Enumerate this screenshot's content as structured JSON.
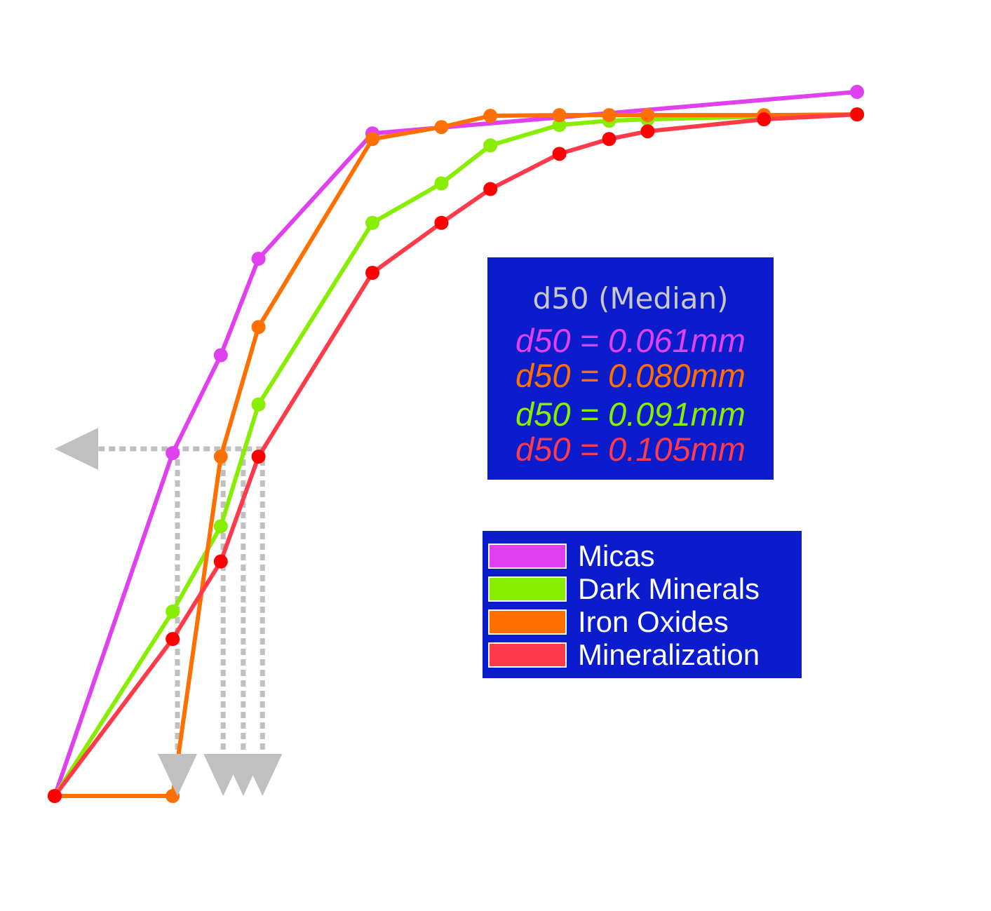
{
  "chart_data": {
    "type": "line",
    "title": "",
    "xlabel": "",
    "ylabel": "",
    "xlim": [
      0,
      100
    ],
    "ylim": [
      0,
      100
    ],
    "grid": false,
    "legend_position": "center-right",
    "series": [
      {
        "name": "Micas",
        "color": "#e040f0",
        "x": [
          0,
          14.7,
          20.7,
          25.4,
          39.6,
          100
        ],
        "y": [
          0,
          48.7,
          62.6,
          76.3,
          94.1,
          100
        ]
      },
      {
        "name": "Iron Oxides",
        "color": "#ff7000",
        "x": [
          0,
          14.7,
          20.7,
          25.4,
          39.6,
          48.2,
          54.3,
          62.9,
          69.1,
          73.9,
          88.4,
          100
        ],
        "y": [
          0,
          0,
          48.2,
          66.6,
          93.3,
          95.0,
          96.6,
          96.7,
          96.7,
          96.7,
          96.7,
          96.8
        ]
      },
      {
        "name": "Dark Minerals",
        "color": "#88ee00",
        "x": [
          0,
          14.7,
          20.7,
          25.4,
          39.6,
          48.2,
          54.3,
          62.9,
          69.1,
          73.9,
          88.4,
          100
        ],
        "y": [
          0,
          26.2,
          38.3,
          55.6,
          81.4,
          87.0,
          92.4,
          95.3,
          95.9,
          96.1,
          96.5,
          96.8
        ]
      },
      {
        "name": "Mineralization",
        "color": "#ff3a4a",
        "x": [
          0,
          14.7,
          20.7,
          25.4,
          39.6,
          48.2,
          54.3,
          62.9,
          69.1,
          73.9,
          88.4,
          100
        ],
        "y": [
          0,
          22.3,
          33.3,
          48.2,
          74.3,
          81.4,
          86.2,
          91.2,
          93.3,
          94.4,
          96.1,
          96.8
        ]
      }
    ],
    "d50_level": 49.3,
    "d50_x": [
      15.3,
      21.0,
      23.5,
      25.9
    ]
  },
  "median_box": {
    "title": "d50 (Median)",
    "lines": [
      {
        "text": "d50 = 0.061mm",
        "color": "#e040f0"
      },
      {
        "text": "d50 = 0.080mm",
        "color": "#ff7000"
      },
      {
        "text": "d50 = 0.091mm",
        "color": "#88ee00"
      },
      {
        "text": "d50 = 0.105mm",
        "color": "#ff3a4a"
      }
    ]
  },
  "legend": {
    "items": [
      {
        "label": "Micas",
        "color": "#e040f0"
      },
      {
        "label": "Dark Minerals",
        "color": "#88ee00"
      },
      {
        "label": "Iron Oxides",
        "color": "#ff7000"
      },
      {
        "label": "Mineralization",
        "color": "#ff3a4a"
      }
    ]
  },
  "colors": {
    "box_background": "#0a1ccc",
    "guide_gray": "#c0c0c0",
    "marker_red": "#ff0000"
  }
}
